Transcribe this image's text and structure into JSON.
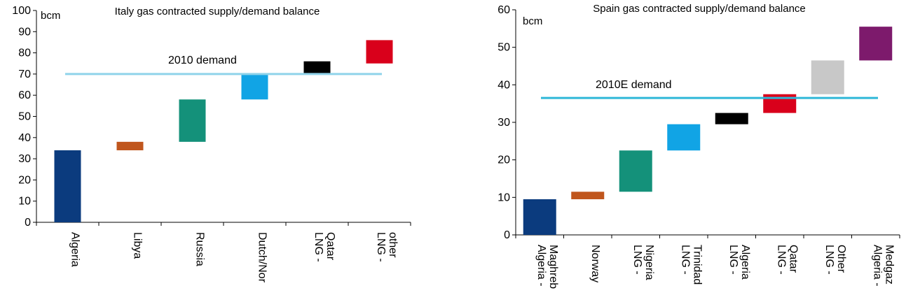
{
  "chart_data": [
    {
      "type": "bar",
      "subtype": "floating-waterfall",
      "title": "Italy gas contracted supply/demand balance",
      "ylabel": "bcm",
      "ylim": [
        0,
        100
      ],
      "yticks": [
        0,
        10,
        20,
        30,
        40,
        50,
        60,
        70,
        80,
        90,
        100
      ],
      "grid": false,
      "categories": [
        "Algeria",
        "Libya",
        "Russia",
        "Dutch/Nor",
        "LNG -\nQatar",
        "LNG -\nother"
      ],
      "ranges": [
        [
          0,
          34
        ],
        [
          34,
          38
        ],
        [
          38,
          58
        ],
        [
          58,
          70
        ],
        [
          70,
          76
        ],
        [
          75,
          86
        ]
      ],
      "colors": [
        "#0b3b7e",
        "#c0561d",
        "#14917a",
        "#11a4e5",
        "#000000",
        "#d9001b"
      ],
      "demand": {
        "label": "2010 demand",
        "value": 70,
        "color": "#8fd3ea"
      }
    },
    {
      "type": "bar",
      "subtype": "floating-waterfall",
      "title": "Spain gas contracted supply/demand balance",
      "ylabel": "bcm",
      "ylim": [
        0,
        60
      ],
      "yticks": [
        0,
        10,
        20,
        30,
        40,
        50,
        60
      ],
      "grid": false,
      "categories": [
        "Algeria -\nMaghreb",
        "Norway",
        "LNG -\nNigeria",
        "LNG -\nTrinidad",
        "LNG -\nAlgeria",
        "LNG -\nQatar",
        "LNG -\nOther",
        "Algeria -\nMedgaz"
      ],
      "ranges": [
        [
          0,
          9.5
        ],
        [
          9.5,
          11.5
        ],
        [
          11.5,
          22.5
        ],
        [
          22.5,
          29.5
        ],
        [
          29.5,
          32.5
        ],
        [
          32.5,
          37.5
        ],
        [
          37.5,
          46.5
        ],
        [
          46.5,
          55.5
        ]
      ],
      "colors": [
        "#0b3b7e",
        "#c0561d",
        "#14917a",
        "#11a4e5",
        "#000000",
        "#d9001b",
        "#c8c8c8",
        "#7d1a6c"
      ],
      "demand": {
        "label": "2010E demand",
        "value": 36.5,
        "color": "#2fb7d8"
      }
    }
  ]
}
